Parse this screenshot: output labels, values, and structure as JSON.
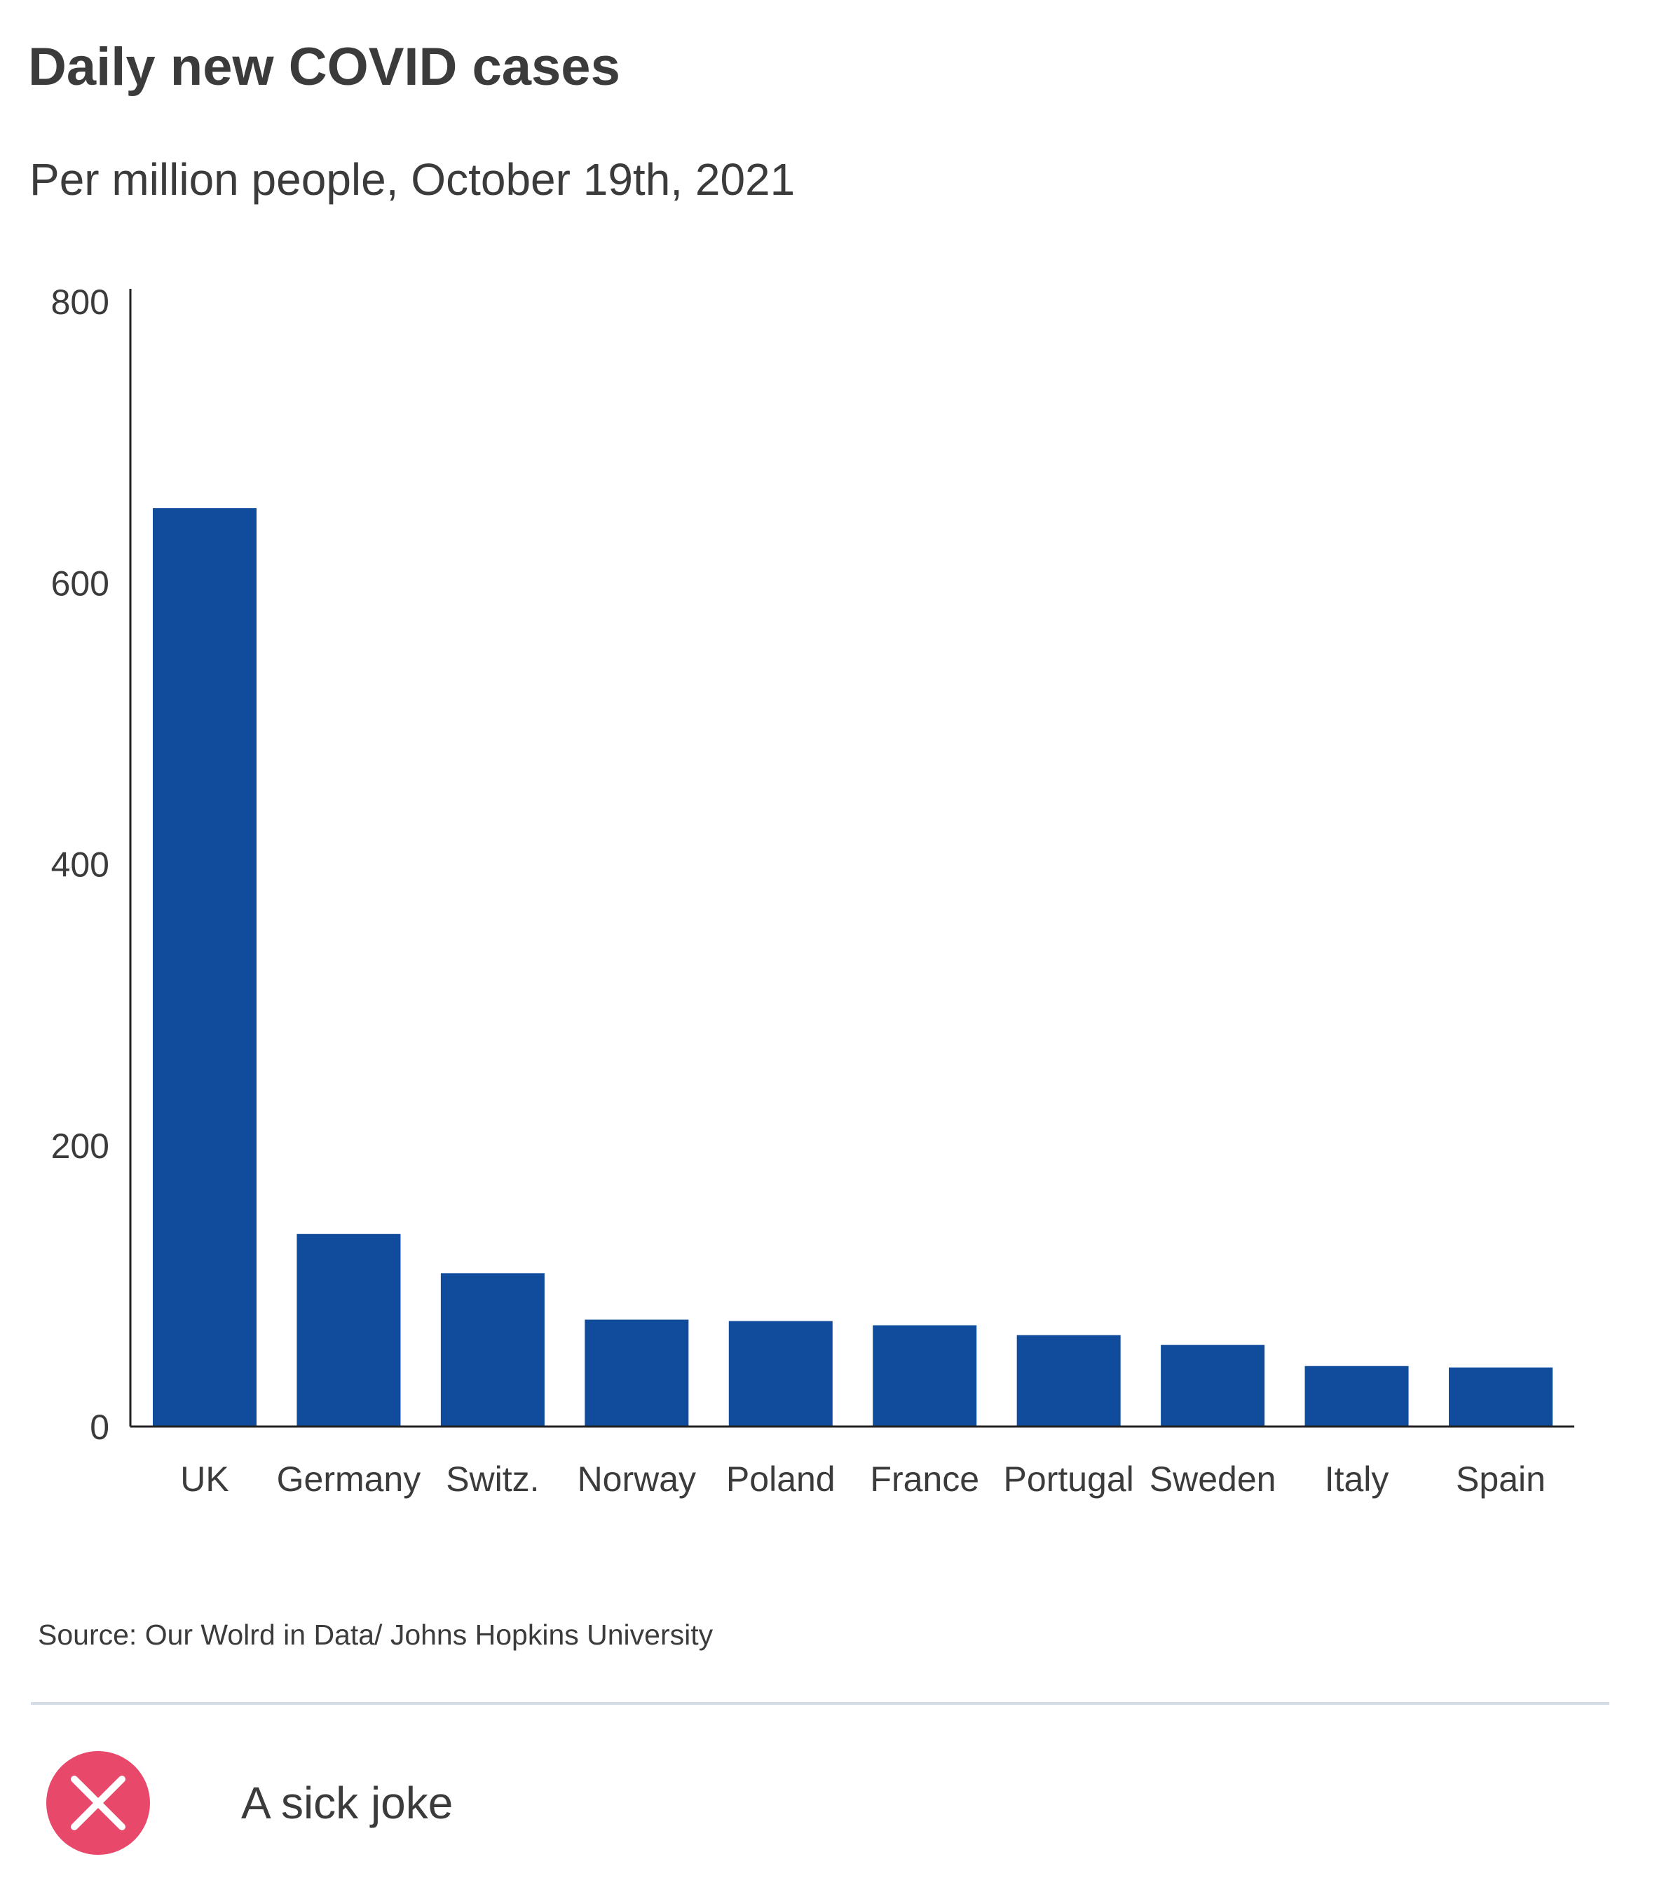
{
  "title": "Daily new COVID cases",
  "subtitle": "Per million people, October 19th, 2021",
  "source": "Source: Our Wolrd in Data/ Johns Hopkins University",
  "verdict": {
    "label": "A sick joke",
    "icon": "close-icon",
    "icon_color": "#e8496a"
  },
  "colors": {
    "bar": "#104c9b",
    "axis": "#222222",
    "text": "#3b3b3b"
  },
  "chart_data": {
    "type": "bar",
    "categories": [
      "UK",
      "Germany",
      "Switz.",
      "Norway",
      "Poland",
      "France",
      "Portugal",
      "Sweden",
      "Italy",
      "Spain"
    ],
    "values": [
      653,
      137,
      109,
      76,
      75,
      72,
      65,
      58,
      43,
      42
    ],
    "yticks": [
      0,
      200,
      400,
      600,
      800
    ],
    "ylim": [
      0,
      800
    ],
    "xlabel": "",
    "ylabel": "",
    "grid": false,
    "legend": "none"
  }
}
